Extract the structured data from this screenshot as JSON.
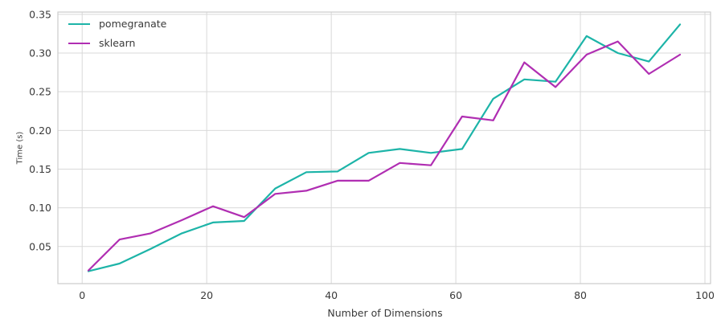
{
  "chart_data": {
    "type": "line",
    "title": "",
    "xlabel": "Number of Dimensions",
    "ylabel": "Time (s)",
    "x": [
      1,
      6,
      11,
      16,
      21,
      26,
      31,
      36,
      41,
      46,
      51,
      56,
      61,
      66,
      71,
      76,
      81,
      86,
      91,
      96
    ],
    "series": [
      {
        "name": "pomegranate",
        "color": "#1db4a8",
        "values": [
          0.018,
          0.028,
          0.047,
          0.067,
          0.081,
          0.083,
          0.125,
          0.146,
          0.147,
          0.171,
          0.176,
          0.171,
          0.176,
          0.241,
          0.266,
          0.263,
          0.322,
          0.3,
          0.289,
          0.337
        ]
      },
      {
        "name": "sklearn",
        "color": "#b02eb2",
        "values": [
          0.019,
          0.059,
          0.067,
          0.084,
          0.102,
          0.088,
          0.118,
          0.122,
          0.135,
          0.135,
          0.158,
          0.155,
          0.218,
          0.213,
          0.288,
          0.256,
          0.298,
          0.315,
          0.273,
          0.298
        ]
      }
    ],
    "xlim": [
      -3.9,
      100.9
    ],
    "ylim": [
      0.002,
      0.353
    ],
    "xticks": [
      0,
      20,
      40,
      60,
      80,
      100
    ],
    "xtick_labels": [
      "0",
      "20",
      "40",
      "60",
      "80",
      "100"
    ],
    "yticks": [
      0.05,
      0.1,
      0.15,
      0.2,
      0.25,
      0.3,
      0.35
    ],
    "ytick_labels": [
      "0.05",
      "0.10",
      "0.15",
      "0.20",
      "0.25",
      "0.30",
      "0.35"
    ],
    "grid": true,
    "legend_position": "upper left",
    "grid_color": "#d9d9d9",
    "spine_color": "#cccccc",
    "tick_label_color": "#3a3a3a",
    "background_color": "#ffffff",
    "line_width": 2.2
  }
}
